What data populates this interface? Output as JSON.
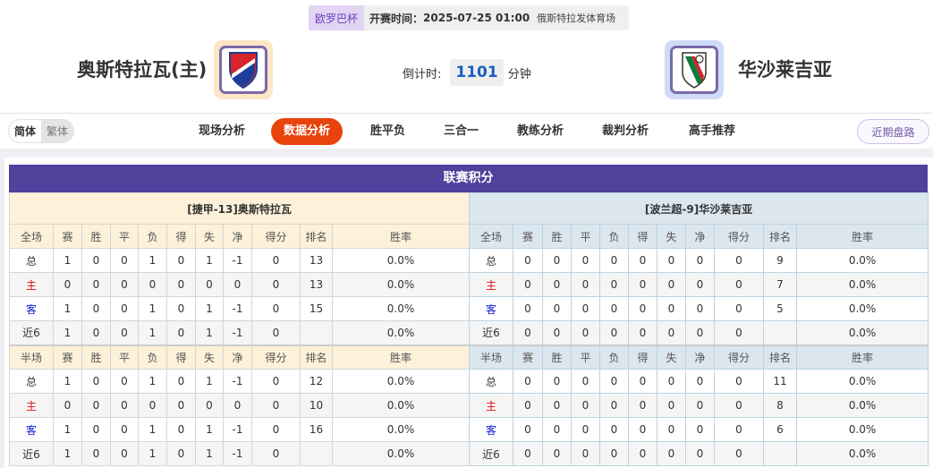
{
  "match": {
    "competition": "欧罗巴杯",
    "kickoff_label": "开赛时间：",
    "kickoff": "2025-07-25 01:00",
    "venue": "俄斯特拉发体育场",
    "home_team": "奥斯特拉瓦(主)",
    "away_team": "华沙莱吉亚",
    "countdown_label": "倒计时:",
    "countdown_value": "1101",
    "countdown_unit": "分钟",
    "home_logo_colors": [
      "#1d3f99",
      "#d7232a"
    ],
    "away_logo_colors": [
      "#0f7a3a",
      "#d7232a"
    ]
  },
  "lang": {
    "simplified": "简体",
    "traditional": "繁体"
  },
  "nav": {
    "items": [
      "现场分析",
      "数据分析",
      "胜平负",
      "三合一",
      "教练分析",
      "裁判分析",
      "高手推荐"
    ],
    "active": "数据分析",
    "recent": "近期盘路"
  },
  "standings": {
    "title": "联赛积分",
    "home": {
      "caption": "[捷甲-13]奥斯特拉瓦",
      "full_header": [
        "全场",
        "赛",
        "胜",
        "平",
        "负",
        "得",
        "失",
        "净",
        "得分",
        "排名",
        "胜率"
      ],
      "full_rows": [
        [
          "总",
          "1",
          "0",
          "0",
          "1",
          "0",
          "1",
          "-1",
          "0",
          "13",
          "0.0%"
        ],
        [
          "主",
          "0",
          "0",
          "0",
          "0",
          "0",
          "0",
          "0",
          "0",
          "13",
          "0.0%"
        ],
        [
          "客",
          "1",
          "0",
          "0",
          "1",
          "0",
          "1",
          "-1",
          "0",
          "15",
          "0.0%"
        ],
        [
          "近6",
          "1",
          "0",
          "0",
          "1",
          "0",
          "1",
          "-1",
          "0",
          "",
          "0.0%"
        ]
      ],
      "half_header": [
        "半场",
        "赛",
        "胜",
        "平",
        "负",
        "得",
        "失",
        "净",
        "得分",
        "排名",
        "胜率"
      ],
      "half_rows": [
        [
          "总",
          "1",
          "0",
          "0",
          "1",
          "0",
          "1",
          "-1",
          "0",
          "12",
          "0.0%"
        ],
        [
          "主",
          "0",
          "0",
          "0",
          "0",
          "0",
          "0",
          "0",
          "0",
          "10",
          "0.0%"
        ],
        [
          "客",
          "1",
          "0",
          "0",
          "1",
          "0",
          "1",
          "-1",
          "0",
          "16",
          "0.0%"
        ],
        [
          "近6",
          "1",
          "0",
          "0",
          "1",
          "0",
          "1",
          "-1",
          "0",
          "",
          "0.0%"
        ]
      ]
    },
    "away": {
      "caption": "[波兰超-9]华沙莱吉亚",
      "full_header": [
        "全场",
        "赛",
        "胜",
        "平",
        "负",
        "得",
        "失",
        "净",
        "得分",
        "排名",
        "胜率"
      ],
      "full_rows": [
        [
          "总",
          "0",
          "0",
          "0",
          "0",
          "0",
          "0",
          "0",
          "0",
          "9",
          "0.0%"
        ],
        [
          "主",
          "0",
          "0",
          "0",
          "0",
          "0",
          "0",
          "0",
          "0",
          "7",
          "0.0%"
        ],
        [
          "客",
          "0",
          "0",
          "0",
          "0",
          "0",
          "0",
          "0",
          "0",
          "5",
          "0.0%"
        ],
        [
          "近6",
          "0",
          "0",
          "0",
          "0",
          "0",
          "0",
          "0",
          "0",
          "",
          "0.0%"
        ]
      ],
      "half_header": [
        "半场",
        "赛",
        "胜",
        "平",
        "负",
        "得",
        "失",
        "净",
        "得分",
        "排名",
        "胜率"
      ],
      "half_rows": [
        [
          "总",
          "0",
          "0",
          "0",
          "0",
          "0",
          "0",
          "0",
          "0",
          "11",
          "0.0%"
        ],
        [
          "主",
          "0",
          "0",
          "0",
          "0",
          "0",
          "0",
          "0",
          "0",
          "8",
          "0.0%"
        ],
        [
          "客",
          "0",
          "0",
          "0",
          "0",
          "0",
          "0",
          "0",
          "0",
          "6",
          "0.0%"
        ],
        [
          "近6",
          "0",
          "0",
          "0",
          "0",
          "0",
          "0",
          "0",
          "0",
          "",
          "0.0%"
        ]
      ]
    }
  }
}
